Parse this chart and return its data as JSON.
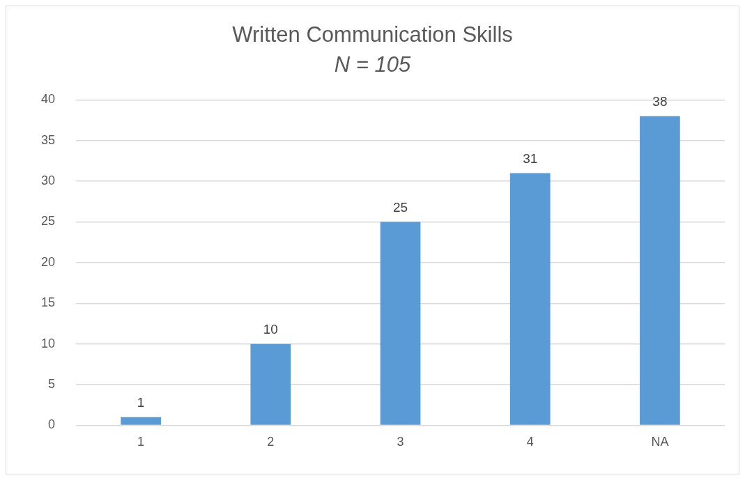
{
  "chart_data": {
    "type": "bar",
    "title": "Written Communication Skills",
    "subtitle": "N = 105",
    "categories": [
      "1",
      "2",
      "3",
      "4",
      "NA"
    ],
    "values": [
      1,
      10,
      25,
      31,
      38
    ],
    "color": "#5b9bd5",
    "ylim": [
      0,
      40
    ],
    "yticks": [
      0,
      5,
      10,
      15,
      20,
      25,
      30,
      35,
      40
    ],
    "grid": "y",
    "data_labels": true,
    "legend": false
  }
}
